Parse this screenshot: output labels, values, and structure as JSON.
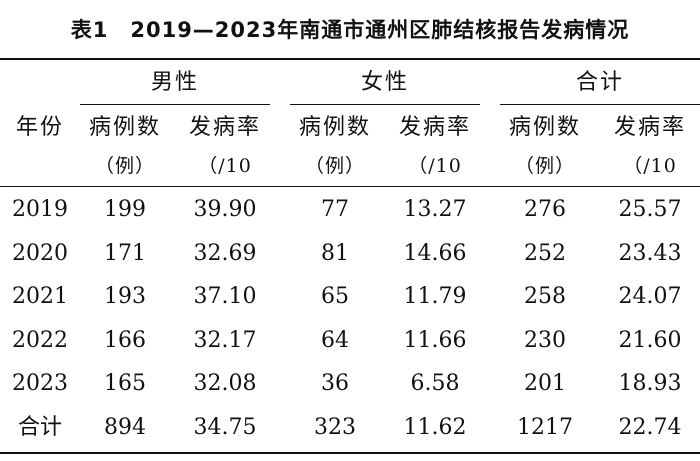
{
  "title": {
    "label": "表1",
    "text": "2019—2023年南通市通州区肺结核报告发病情况"
  },
  "header": {
    "year": "年份",
    "groups": [
      "男性",
      "女性",
      "合计"
    ],
    "sub": [
      "病例数",
      "发病率",
      "病例数",
      "发病率",
      "病例数",
      "发病率"
    ],
    "units": [
      "（例）",
      "（/10",
      "（例）",
      "（/10",
      "（例）",
      "（/10"
    ]
  },
  "rows": [
    [
      "2019",
      "199",
      "39.90",
      "77",
      "13.27",
      "276",
      "25.57"
    ],
    [
      "2020",
      "171",
      "32.69",
      "81",
      "14.66",
      "252",
      "23.43"
    ],
    [
      "2021",
      "193",
      "37.10",
      "65",
      "11.79",
      "258",
      "24.07"
    ],
    [
      "2022",
      "166",
      "32.17",
      "64",
      "11.66",
      "230",
      "21.60"
    ],
    [
      "2023",
      "165",
      "32.08",
      "36",
      "6.58",
      "201",
      "18.93"
    ],
    [
      "合计",
      "894",
      "34.75",
      "323",
      "11.62",
      "1217",
      "22.74"
    ]
  ]
}
